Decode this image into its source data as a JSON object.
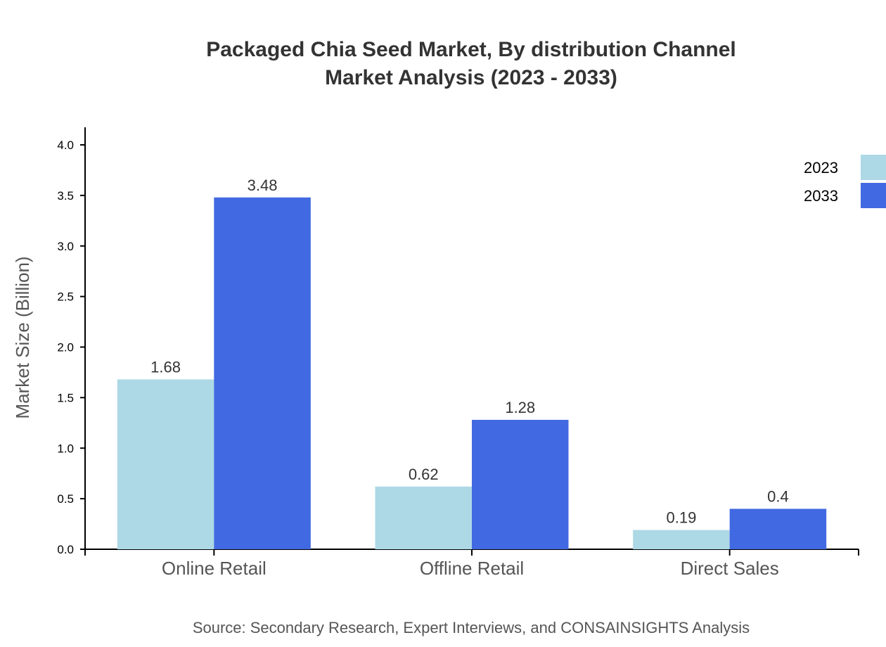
{
  "chart_data": {
    "type": "bar",
    "title": [
      "Packaged Chia Seed Market, By distribution Channel",
      "Market Analysis (2023 - 2033)"
    ],
    "ylabel": "Market Size (Billion)",
    "xlabel": "",
    "ylim": [
      0,
      4.18
    ],
    "yticks": [
      "0.0",
      "0.5",
      "1.0",
      "1.5",
      "2.0",
      "2.5",
      "3.0",
      "3.5",
      "4.0"
    ],
    "categories": [
      "Online Retail",
      "Offline Retail",
      "Direct Sales"
    ],
    "series": [
      {
        "name": "2023",
        "color": "#add8e6",
        "values": [
          1.68,
          0.62,
          0.19
        ],
        "labels": [
          "1.68",
          "0.62",
          "0.19"
        ]
      },
      {
        "name": "2033",
        "color": "#4169e1",
        "values": [
          3.48,
          1.28,
          0.4
        ],
        "labels": [
          "3.48",
          "1.28",
          "0.4"
        ]
      }
    ],
    "legend": "top-right",
    "grid": false,
    "source": "Source: Secondary Research, Expert Interviews, and CONSAINSIGHTS Analysis"
  }
}
